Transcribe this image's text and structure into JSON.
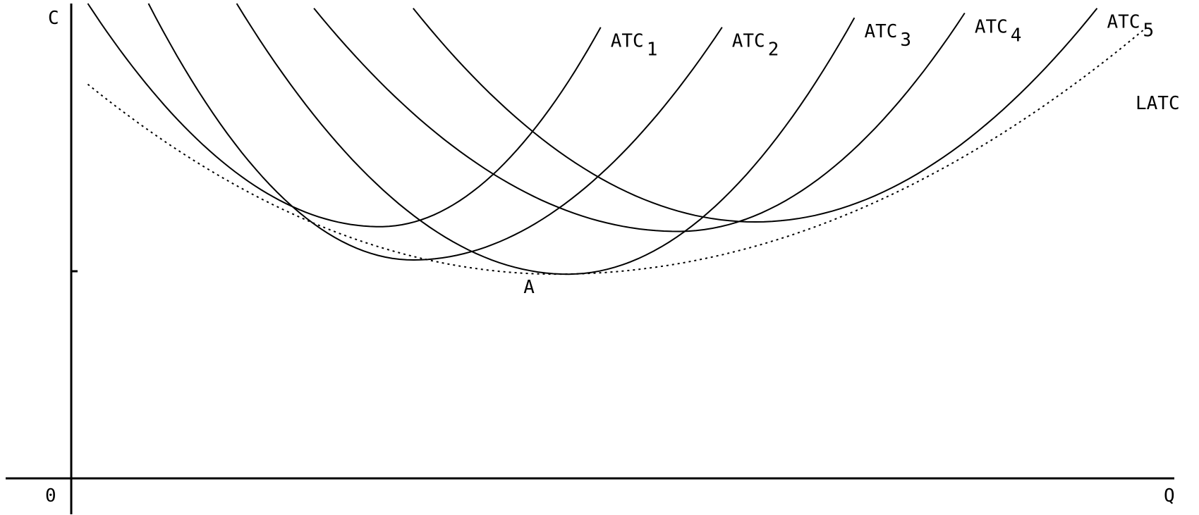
{
  "chart_data": {
    "type": "line",
    "title": "",
    "xlabel": "Q",
    "ylabel": "C",
    "origin_label": "0",
    "xlim": [
      0,
      100
    ],
    "ylim": [
      0,
      100
    ],
    "grid": false,
    "legend": "none",
    "series": [
      {
        "name": "ATC",
        "subscript": "1",
        "min": [
          28,
          53
        ],
        "x": [
          1.5,
          22,
          40,
          48
        ],
        "y": [
          100,
          56,
          76,
          95
        ]
      },
      {
        "name": "ATC",
        "subscript": "2",
        "min": [
          31,
          46
        ],
        "x": [
          7,
          31,
          59
        ],
        "y": [
          100,
          46,
          95
        ]
      },
      {
        "name": "ATC",
        "subscript": "3",
        "min": [
          45,
          43
        ],
        "x": [
          15,
          45,
          71
        ],
        "y": [
          100,
          43,
          97
        ]
      },
      {
        "name": "ATC",
        "subscript": "4",
        "min": [
          55,
          52
        ],
        "x": [
          22,
          55,
          81
        ],
        "y": [
          99,
          52,
          98
        ]
      },
      {
        "name": "ATC",
        "subscript": "5",
        "min": [
          62,
          54
        ],
        "x": [
          31,
          62,
          93
        ],
        "y": [
          99,
          54,
          99
        ]
      },
      {
        "name": "LATC",
        "subscript": "",
        "x": [
          1.5,
          44,
          97.5
        ],
        "y": [
          83,
          43,
          95
        ]
      }
    ],
    "annotations": [
      {
        "text": "A",
        "x": 41,
        "y": 39
      }
    ]
  }
}
